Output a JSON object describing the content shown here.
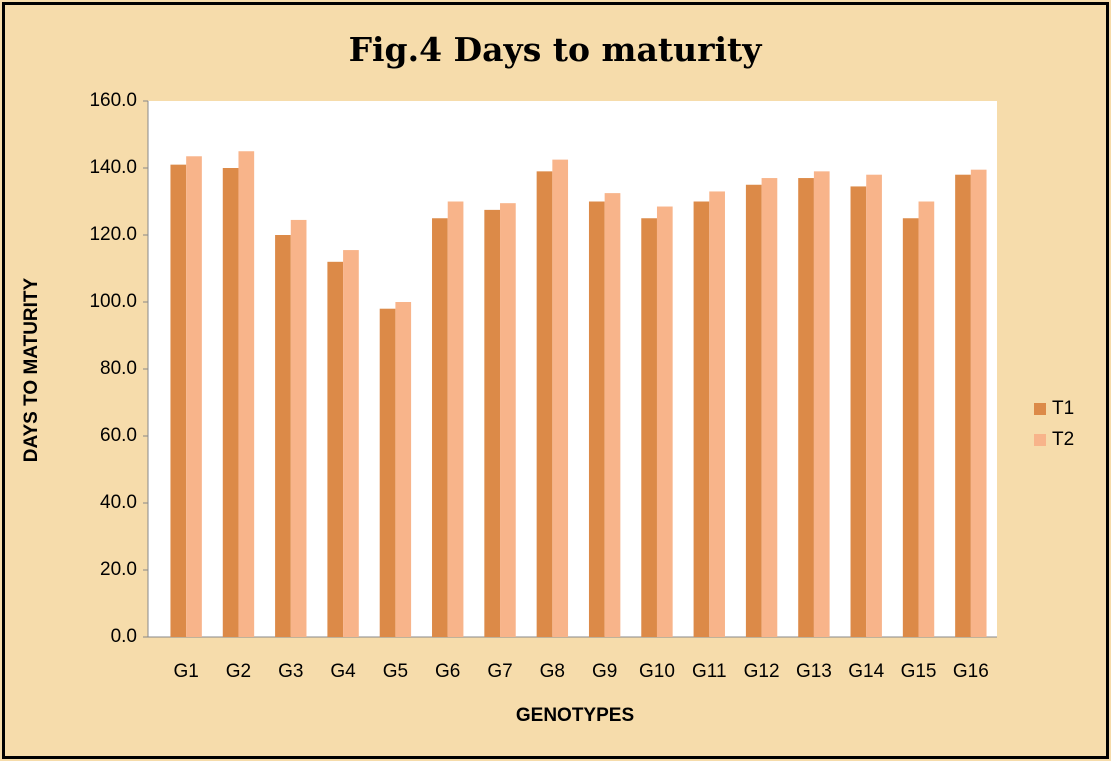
{
  "chart_data": {
    "type": "bar",
    "title": "Fig.4  Days to maturity",
    "x_label": "GENOTYPES",
    "y_label": "DAYS TO MATURITY",
    "categories": [
      "G1",
      "G2",
      "G3",
      "G4",
      "G5",
      "G6",
      "G7",
      "G8",
      "G9",
      "G10",
      "G11",
      "G12",
      "G13",
      "G14",
      "G15",
      "G16"
    ],
    "series": [
      {
        "name": "T1",
        "color": "#dc8a48",
        "values": [
          141,
          140,
          120,
          112,
          98,
          125,
          127.5,
          139,
          130,
          125,
          130,
          135,
          137,
          134.5,
          125,
          138
        ]
      },
      {
        "name": "T2",
        "color": "#f8b48a",
        "values": [
          143.5,
          145,
          124.5,
          115.5,
          100,
          130,
          129.5,
          142.5,
          132.5,
          128.5,
          133,
          137,
          139,
          138,
          130,
          139.5
        ]
      }
    ],
    "ylim": [
      0,
      160
    ],
    "yticks": [
      {
        "value": 0,
        "label": "0.0"
      },
      {
        "value": 20,
        "label": "20.0"
      },
      {
        "value": 40,
        "label": "40.0"
      },
      {
        "value": 60,
        "label": "60.0"
      },
      {
        "value": 80,
        "label": "80.0"
      },
      {
        "value": 100,
        "label": "100.0"
      },
      {
        "value": 120,
        "label": "120.0"
      },
      {
        "value": 140,
        "label": "140.0"
      },
      {
        "value": 160,
        "label": "160.0"
      }
    ],
    "grid": false,
    "legend": "right"
  }
}
